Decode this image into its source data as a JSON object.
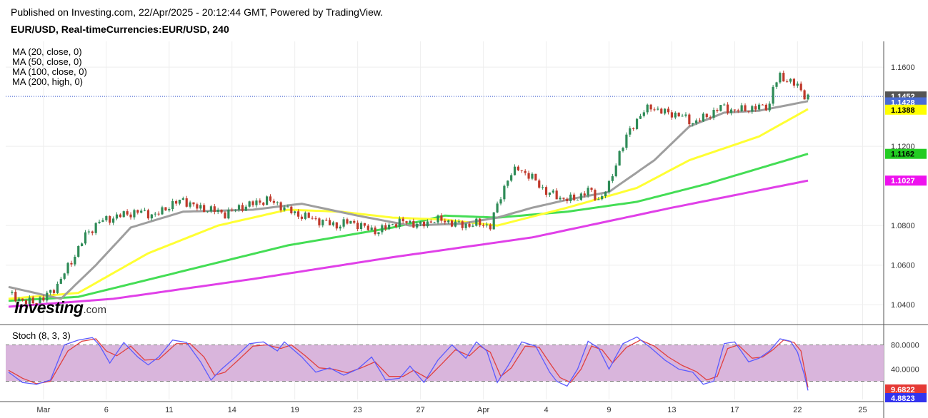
{
  "header": {
    "published": "Published on Investing.com, 22/Apr/2025 - 20:12:44 GMT, Powered by TradingView.",
    "symbol": "EUR/USD, Real-timeCurrencies:EUR/USD, 240"
  },
  "logo": {
    "brand": "Investing",
    "suffix": ".com"
  },
  "indicators": {
    "ma": [
      "MA (20, close, 0)",
      "MA (50, close, 0)",
      "MA (100, close, 0)",
      "MA (200, high, 0)"
    ],
    "stoch": "Stoch (8, 3, 3)"
  },
  "colors": {
    "up": "#2e8b57",
    "down": "#c0392b",
    "ma20": "#9e9e9e",
    "ma50": "#ffff33",
    "ma100": "#44dd55",
    "ma200": "#e040e8",
    "stochK": "#5b5bff",
    "stochD": "#e04040",
    "stochBand": "#d9b5dc"
  },
  "chart_data": [
    {
      "type": "candlestick",
      "title": "EUR/USD, Real-timeCurrencies:EUR/USD, 240",
      "y_axis": {
        "ticks": [
          "1.1600",
          "1.1200",
          "1.0800",
          "1.0600",
          "1.0400"
        ],
        "tick_values": [
          1.16,
          1.12,
          1.08,
          1.06,
          1.04
        ],
        "ylim": [
          1.03,
          1.173
        ]
      },
      "x_axis": {
        "labels": [
          "Mar",
          "6",
          "11",
          "14",
          "19",
          "23",
          "27",
          "Apr",
          "4",
          "9",
          "13",
          "17",
          "22",
          "25"
        ]
      },
      "grid": true,
      "last_price": {
        "label": "1.1452",
        "value": 1.1452
      },
      "price_line": 1.1452,
      "ma_labels": [
        {
          "name": "MA (20, close, 0)",
          "label": "1.1428",
          "value": 1.1428,
          "color": "#4a6cd4"
        },
        {
          "name": "MA (50, close, 0)",
          "label": "1.1388",
          "value": 1.1388,
          "color": "#ffff00"
        },
        {
          "name": "MA (100, close, 0)",
          "label": "1.1162",
          "value": 1.1162,
          "color": "#22cc22"
        },
        {
          "name": "MA (200, high, 0)",
          "label": "1.1027",
          "value": 1.1027,
          "color": "#ee11ee"
        }
      ],
      "series_close_keypoints": [
        [
          0,
          1.046
        ],
        [
          5,
          1.041
        ],
        [
          10,
          1.043
        ],
        [
          14,
          1.05
        ],
        [
          18,
          1.062
        ],
        [
          22,
          1.075
        ],
        [
          26,
          1.082
        ],
        [
          30,
          1.084
        ],
        [
          34,
          1.086
        ],
        [
          38,
          1.087
        ],
        [
          42,
          1.085
        ],
        [
          46,
          1.09
        ],
        [
          50,
          1.093
        ],
        [
          54,
          1.089
        ],
        [
          58,
          1.088
        ],
        [
          62,
          1.086
        ],
        [
          66,
          1.089
        ],
        [
          70,
          1.091
        ],
        [
          74,
          1.093
        ],
        [
          78,
          1.09
        ],
        [
          82,
          1.086
        ],
        [
          86,
          1.084
        ],
        [
          90,
          1.082
        ],
        [
          94,
          1.08
        ],
        [
          98,
          1.082
        ],
        [
          102,
          1.079
        ],
        [
          106,
          1.077
        ],
        [
          110,
          1.081
        ],
        [
          114,
          1.082
        ],
        [
          118,
          1.08
        ],
        [
          122,
          1.083
        ],
        [
          126,
          1.082
        ],
        [
          130,
          1.08
        ],
        [
          134,
          1.081
        ],
        [
          138,
          1.08
        ],
        [
          140,
          1.09
        ],
        [
          143,
          1.104
        ],
        [
          146,
          1.109
        ],
        [
          150,
          1.104
        ],
        [
          154,
          1.097
        ],
        [
          158,
          1.094
        ],
        [
          162,
          1.093
        ],
        [
          166,
          1.098
        ],
        [
          169,
          1.093
        ],
        [
          172,
          1.1
        ],
        [
          175,
          1.117
        ],
        [
          178,
          1.128
        ],
        [
          181,
          1.136
        ],
        [
          184,
          1.14
        ],
        [
          188,
          1.137
        ],
        [
          192,
          1.136
        ],
        [
          196,
          1.132
        ],
        [
          200,
          1.135
        ],
        [
          204,
          1.14
        ],
        [
          208,
          1.138
        ],
        [
          212,
          1.139
        ],
        [
          216,
          1.14
        ],
        [
          218,
          1.141
        ],
        [
          219,
          1.15
        ],
        [
          221,
          1.155
        ],
        [
          224,
          1.153
        ],
        [
          226,
          1.15
        ],
        [
          228,
          1.146
        ],
        [
          229,
          1.1452
        ]
      ],
      "ma_keypoints": {
        "ma20": [
          [
            0,
            1.049
          ],
          [
            15,
            1.043
          ],
          [
            25,
            1.06
          ],
          [
            35,
            1.079
          ],
          [
            50,
            1.087
          ],
          [
            70,
            1.088
          ],
          [
            84,
            1.091
          ],
          [
            100,
            1.085
          ],
          [
            115,
            1.08
          ],
          [
            130,
            1.081
          ],
          [
            140,
            1.084
          ],
          [
            150,
            1.089
          ],
          [
            160,
            1.093
          ],
          [
            172,
            1.097
          ],
          [
            185,
            1.113
          ],
          [
            195,
            1.13
          ],
          [
            205,
            1.137
          ],
          [
            215,
            1.138
          ],
          [
            229,
            1.1428
          ]
        ],
        "ma50": [
          [
            0,
            1.043
          ],
          [
            20,
            1.046
          ],
          [
            40,
            1.066
          ],
          [
            60,
            1.08
          ],
          [
            80,
            1.088
          ],
          [
            95,
            1.087
          ],
          [
            110,
            1.084
          ],
          [
            125,
            1.083
          ],
          [
            140,
            1.08
          ],
          [
            160,
            1.089
          ],
          [
            180,
            1.099
          ],
          [
            195,
            1.113
          ],
          [
            215,
            1.125
          ],
          [
            229,
            1.1388
          ]
        ],
        "ma100": [
          [
            0,
            1.042
          ],
          [
            20,
            1.044
          ],
          [
            50,
            1.057
          ],
          [
            80,
            1.07
          ],
          [
            110,
            1.079
          ],
          [
            125,
            1.085
          ],
          [
            140,
            1.084
          ],
          [
            160,
            1.087
          ],
          [
            180,
            1.092
          ],
          [
            200,
            1.101
          ],
          [
            229,
            1.1162
          ]
        ],
        "ma200": [
          [
            0,
            1.039
          ],
          [
            30,
            1.043
          ],
          [
            70,
            1.053
          ],
          [
            110,
            1.064
          ],
          [
            150,
            1.074
          ],
          [
            190,
            1.089
          ],
          [
            229,
            1.1027
          ]
        ]
      }
    },
    {
      "type": "line",
      "title": "Stoch (8, 3, 3)",
      "y_axis": {
        "ticks": [
          "80.0000",
          "40.0000"
        ],
        "tick_values": [
          80,
          40
        ],
        "ylim": [
          -10,
          110
        ]
      },
      "bands": {
        "upper": 80,
        "lower": 20
      },
      "last_values": [
        {
          "series": "%D",
          "label": "9.6822",
          "value": 9.6822,
          "color": "#e53935"
        },
        {
          "series": "%K",
          "label": "4.8823",
          "value": 4.8823,
          "color": "#3333ee"
        }
      ],
      "k_keypoints": [
        [
          0,
          35
        ],
        [
          4,
          18
        ],
        [
          8,
          15
        ],
        [
          12,
          22
        ],
        [
          16,
          80
        ],
        [
          20,
          88
        ],
        [
          24,
          92
        ],
        [
          26,
          80
        ],
        [
          29,
          50
        ],
        [
          33,
          84
        ],
        [
          37,
          60
        ],
        [
          40,
          47
        ],
        [
          43,
          60
        ],
        [
          47,
          88
        ],
        [
          51,
          84
        ],
        [
          55,
          52
        ],
        [
          58,
          22
        ],
        [
          61,
          40
        ],
        [
          65,
          60
        ],
        [
          69,
          82
        ],
        [
          73,
          85
        ],
        [
          77,
          70
        ],
        [
          79,
          85
        ],
        [
          84,
          60
        ],
        [
          88,
          35
        ],
        [
          92,
          42
        ],
        [
          96,
          30
        ],
        [
          100,
          40
        ],
        [
          104,
          60
        ],
        [
          108,
          22
        ],
        [
          112,
          25
        ],
        [
          115,
          45
        ],
        [
          119,
          18
        ],
        [
          123,
          55
        ],
        [
          127,
          80
        ],
        [
          131,
          58
        ],
        [
          134,
          85
        ],
        [
          137,
          70
        ],
        [
          140,
          18
        ],
        [
          143,
          45
        ],
        [
          147,
          85
        ],
        [
          151,
          78
        ],
        [
          155,
          35
        ],
        [
          157,
          20
        ],
        [
          160,
          12
        ],
        [
          163,
          40
        ],
        [
          166,
          86
        ],
        [
          169,
          75
        ],
        [
          172,
          40
        ],
        [
          176,
          82
        ],
        [
          180,
          93
        ],
        [
          184,
          75
        ],
        [
          188,
          55
        ],
        [
          192,
          40
        ],
        [
          196,
          35
        ],
        [
          199,
          15
        ],
        [
          202,
          20
        ],
        [
          205,
          82
        ],
        [
          208,
          85
        ],
        [
          212,
          52
        ],
        [
          215,
          58
        ],
        [
          218,
          70
        ],
        [
          221,
          90
        ],
        [
          224,
          86
        ],
        [
          226,
          68
        ],
        [
          228,
          30
        ],
        [
          229,
          4.8823
        ]
      ],
      "d_keypoints": [
        [
          0,
          38
        ],
        [
          4,
          25
        ],
        [
          8,
          16
        ],
        [
          12,
          20
        ],
        [
          17,
          70
        ],
        [
          21,
          86
        ],
        [
          25,
          90
        ],
        [
          28,
          70
        ],
        [
          31,
          62
        ],
        [
          35,
          78
        ],
        [
          39,
          55
        ],
        [
          43,
          56
        ],
        [
          48,
          82
        ],
        [
          52,
          82
        ],
        [
          56,
          60
        ],
        [
          59,
          30
        ],
        [
          62,
          35
        ],
        [
          66,
          56
        ],
        [
          70,
          78
        ],
        [
          74,
          80
        ],
        [
          78,
          74
        ],
        [
          81,
          80
        ],
        [
          85,
          62
        ],
        [
          89,
          42
        ],
        [
          93,
          40
        ],
        [
          97,
          34
        ],
        [
          101,
          42
        ],
        [
          105,
          52
        ],
        [
          109,
          28
        ],
        [
          113,
          28
        ],
        [
          116,
          38
        ],
        [
          120,
          25
        ],
        [
          124,
          48
        ],
        [
          128,
          72
        ],
        [
          132,
          62
        ],
        [
          135,
          78
        ],
        [
          138,
          68
        ],
        [
          141,
          28
        ],
        [
          144,
          42
        ],
        [
          148,
          78
        ],
        [
          152,
          76
        ],
        [
          156,
          42
        ],
        [
          158,
          26
        ],
        [
          161,
          18
        ],
        [
          164,
          40
        ],
        [
          167,
          78
        ],
        [
          170,
          72
        ],
        [
          173,
          50
        ],
        [
          177,
          76
        ],
        [
          181,
          88
        ],
        [
          185,
          78
        ],
        [
          189,
          60
        ],
        [
          193,
          46
        ],
        [
          197,
          36
        ],
        [
          200,
          22
        ],
        [
          203,
          28
        ],
        [
          206,
          74
        ],
        [
          209,
          80
        ],
        [
          213,
          58
        ],
        [
          216,
          60
        ],
        [
          219,
          72
        ],
        [
          222,
          88
        ],
        [
          225,
          84
        ],
        [
          227,
          70
        ],
        [
          229,
          9.6822
        ]
      ]
    }
  ]
}
